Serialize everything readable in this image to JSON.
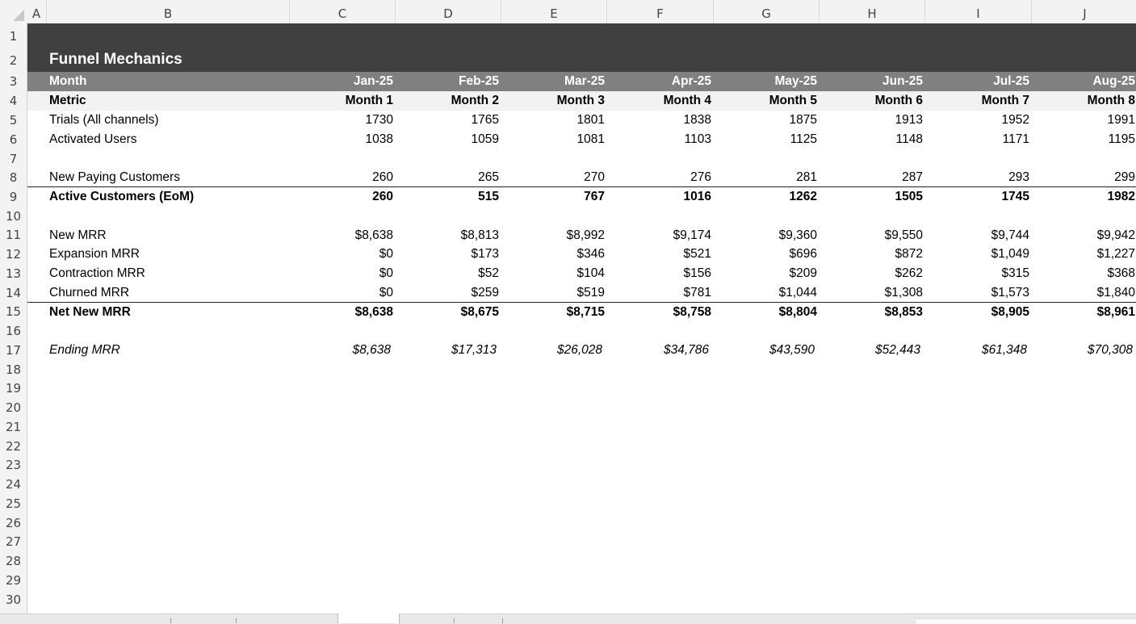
{
  "columns": [
    "A",
    "B",
    "C",
    "D",
    "E",
    "F",
    "G",
    "H",
    "I",
    "J"
  ],
  "rows": [
    "1",
    "2",
    "3",
    "4",
    "5",
    "6",
    "7",
    "8",
    "9",
    "10",
    "11",
    "12",
    "13",
    "14",
    "15",
    "16",
    "17",
    "18",
    "19",
    "20",
    "21",
    "22",
    "23",
    "24",
    "25",
    "26",
    "27",
    "28",
    "29",
    "30"
  ],
  "colors": {
    "title_band": "#404040",
    "month_band": "#808080",
    "metric_band": "#f2f2f2"
  },
  "sheet": {
    "title": "Funnel Mechanics",
    "month_label": "Month",
    "months": [
      "Jan-25",
      "Feb-25",
      "Mar-25",
      "Apr-25",
      "May-25",
      "Jun-25",
      "Jul-25",
      "Aug-25"
    ],
    "metric_label": "Metric",
    "month_numbers": [
      "Month 1",
      "Month 2",
      "Month 3",
      "Month 4",
      "Month 5",
      "Month 6",
      "Month 7",
      "Month 8"
    ],
    "lines": [
      {
        "label": "Trials (All channels)",
        "values": [
          "1730",
          "1765",
          "1801",
          "1838",
          "1875",
          "1913",
          "1952",
          "1991"
        ]
      },
      {
        "label": "Activated Users",
        "values": [
          "1038",
          "1059",
          "1081",
          "1103",
          "1125",
          "1148",
          "1171",
          "1195"
        ]
      },
      {
        "label": "New Paying Customers",
        "values": [
          "260",
          "265",
          "270",
          "276",
          "281",
          "287",
          "293",
          "299"
        ]
      },
      {
        "label": "Active Customers (EoM)",
        "values": [
          "260",
          "515",
          "767",
          "1016",
          "1262",
          "1505",
          "1745",
          "1982"
        ]
      },
      {
        "label": "New MRR",
        "values": [
          "$8,638",
          "$8,813",
          "$8,992",
          "$9,174",
          "$9,360",
          "$9,550",
          "$9,744",
          "$9,942"
        ]
      },
      {
        "label": "Expansion MRR",
        "values": [
          "$0",
          "$173",
          "$346",
          "$521",
          "$696",
          "$872",
          "$1,049",
          "$1,227"
        ]
      },
      {
        "label": "Contraction MRR",
        "values": [
          "$0",
          "$52",
          "$104",
          "$156",
          "$209",
          "$262",
          "$315",
          "$368"
        ]
      },
      {
        "label": "Churned MRR",
        "values": [
          "$0",
          "$259",
          "$519",
          "$781",
          "$1,044",
          "$1,308",
          "$1,573",
          "$1,840"
        ]
      },
      {
        "label": "Net New MRR",
        "values": [
          "$8,638",
          "$8,675",
          "$8,715",
          "$8,758",
          "$8,804",
          "$8,853",
          "$8,905",
          "$8,961"
        ]
      },
      {
        "label": "Ending MRR",
        "values": [
          "$8,638",
          "$17,313",
          "$26,028",
          "$34,786",
          "$43,590",
          "$52,443",
          "$61,348",
          "$70,308"
        ]
      }
    ]
  }
}
